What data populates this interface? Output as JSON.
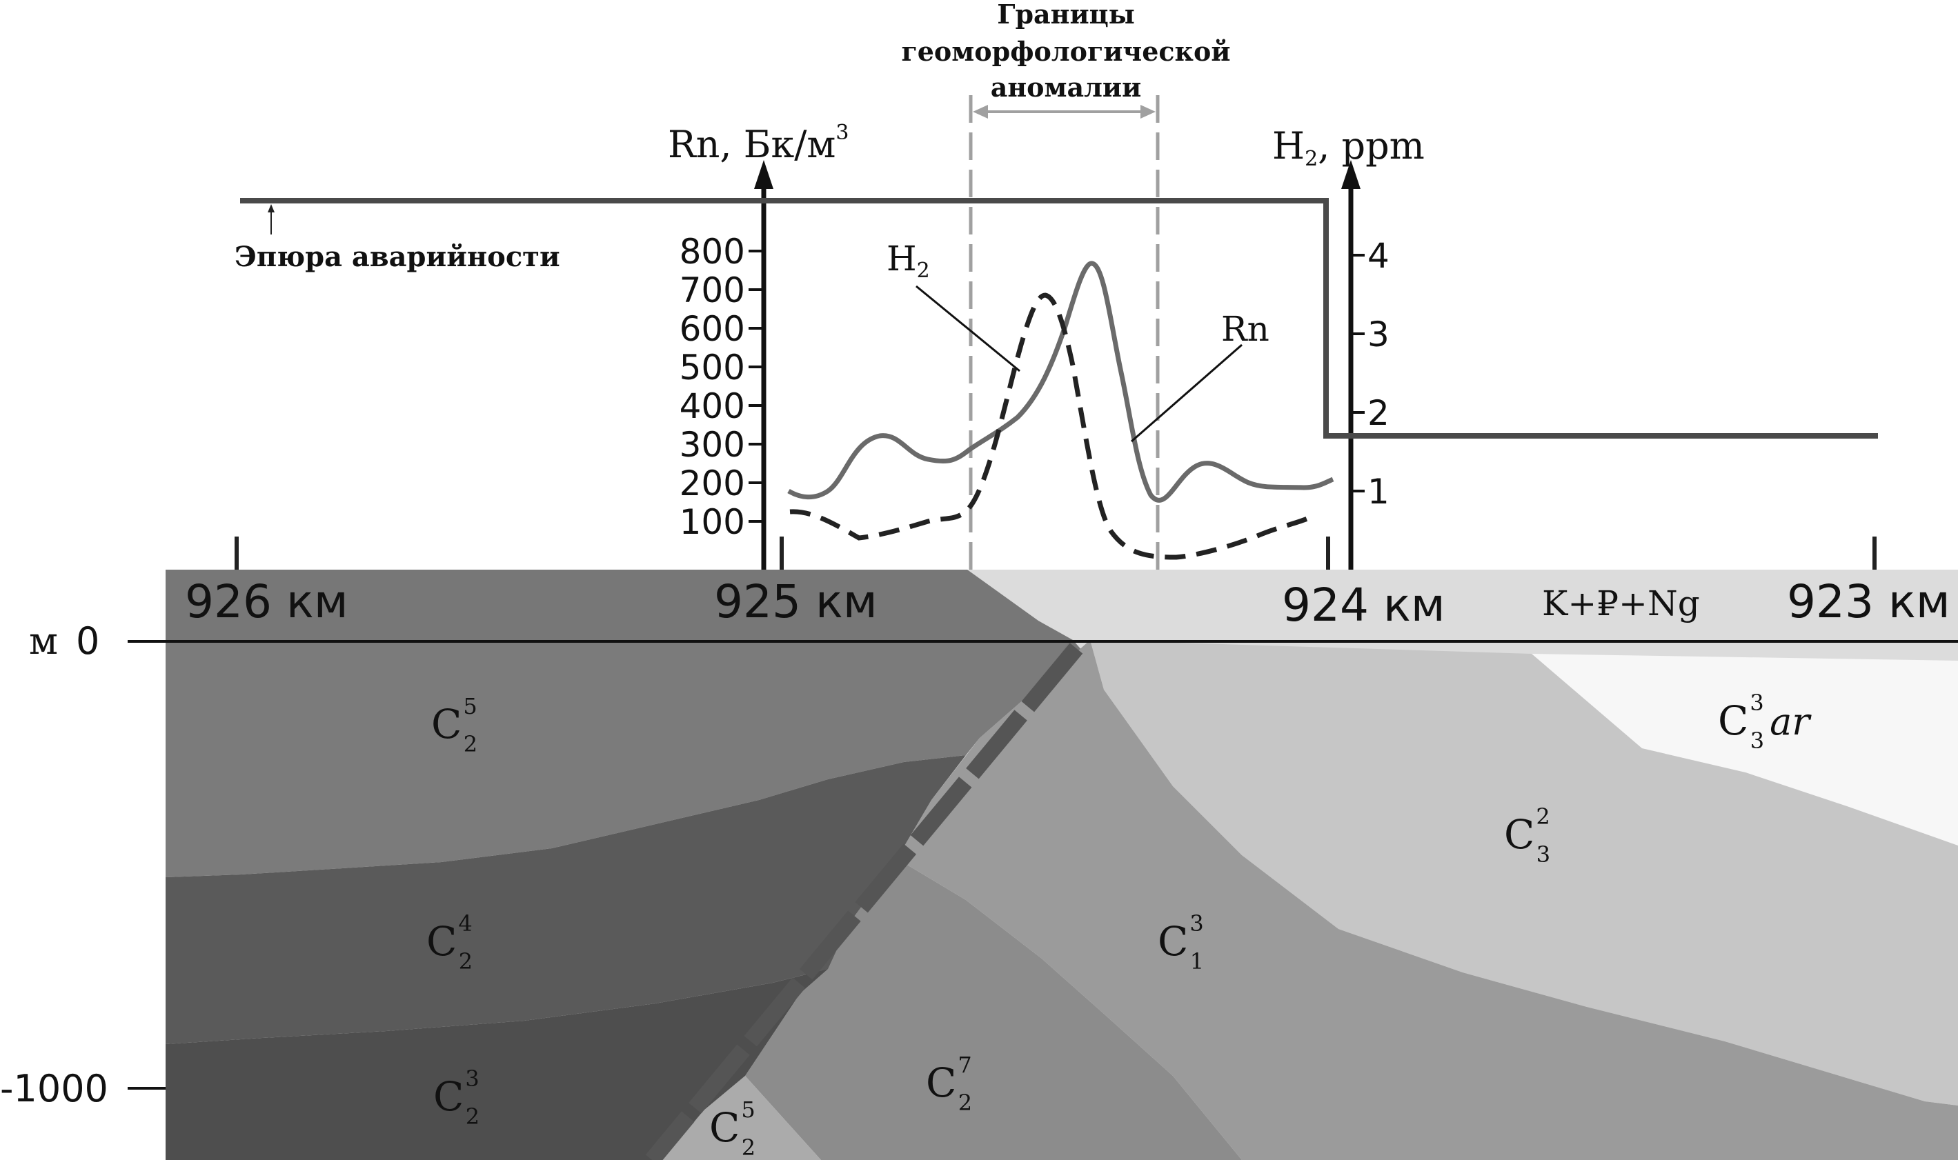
{
  "anomaly": {
    "title_line1": "Границы",
    "title_line2": "геоморфологической",
    "title_line3": "аномалии"
  },
  "left_axis": {
    "label": "Rn, Бк/м",
    "label_sup": "3",
    "ticks": [
      "800",
      "700",
      "600",
      "500",
      "400",
      "300",
      "200",
      "100"
    ]
  },
  "right_axis": {
    "label_main": "H",
    "label_sub": "2",
    "label_rest": ", ppm",
    "ticks": [
      "4",
      "3",
      "2",
      "1"
    ]
  },
  "accident_label": "Эпюра аварийности",
  "curve_labels": {
    "h2_main": "H",
    "h2_sub": "2",
    "rn": "Rn"
  },
  "km": [
    "926 км",
    "925 км",
    "924 км",
    "923 км"
  ],
  "cover_label": "K+₽+Ng",
  "depth": {
    "unit": "м",
    "zero": "0",
    "minus1000": "-1000"
  },
  "formations": [
    {
      "base": "C",
      "sup": "5",
      "sub": "2",
      "tail": ""
    },
    {
      "base": "C",
      "sup": "4",
      "sub": "2",
      "tail": ""
    },
    {
      "base": "C",
      "sup": "3",
      "sub": "2",
      "tail": ""
    },
    {
      "base": "C",
      "sup": "5",
      "sub": "2",
      "tail": ""
    },
    {
      "base": "C",
      "sup": "7",
      "sub": "2",
      "tail": ""
    },
    {
      "base": "C",
      "sup": "3",
      "sub": "1",
      "tail": ""
    },
    {
      "base": "C",
      "sup": "2",
      "sub": "3",
      "tail": ""
    },
    {
      "base": "C",
      "sup": "3",
      "sub": "3",
      "tail": "ar"
    }
  ],
  "colors": {
    "line": "#4a4a4a",
    "curve": "#6a6a6a",
    "anomaly_border": "#a0a0a0",
    "c25_upper": "#7b7b7b",
    "c24": "#5a5a5a",
    "c23": "#4e4e4e",
    "c27": "#8c8c8c",
    "c13": "#9b9b9b",
    "c32": "#c6c6c6",
    "c3ar": "#f7f7f7",
    "cover_light": "#dcdcdc",
    "cover_dark": "#777777",
    "fault": "#555555"
  }
}
